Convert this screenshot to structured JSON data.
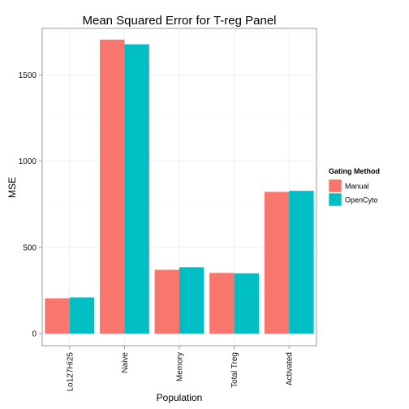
{
  "chart_data": {
    "type": "bar",
    "title": "Mean Squared Error for T-reg Panel",
    "xlabel": "Population",
    "ylabel": "MSE",
    "categories": [
      "Lo127Hi25",
      "Naive",
      "Memory",
      "Total Treg",
      "Activated"
    ],
    "series": [
      {
        "name": "Manual",
        "color": "#F8766D",
        "values": [
          205,
          1705,
          370,
          352,
          822
        ]
      },
      {
        "name": "OpenCyto",
        "color": "#00BFC4",
        "values": [
          210,
          1678,
          385,
          350,
          828
        ]
      }
    ],
    "ylim": [
      -70,
      1770
    ],
    "yticks": [
      0,
      500,
      1000,
      1500
    ],
    "grid": true,
    "legend": {
      "title": "Gating Method",
      "placement": "right"
    }
  }
}
